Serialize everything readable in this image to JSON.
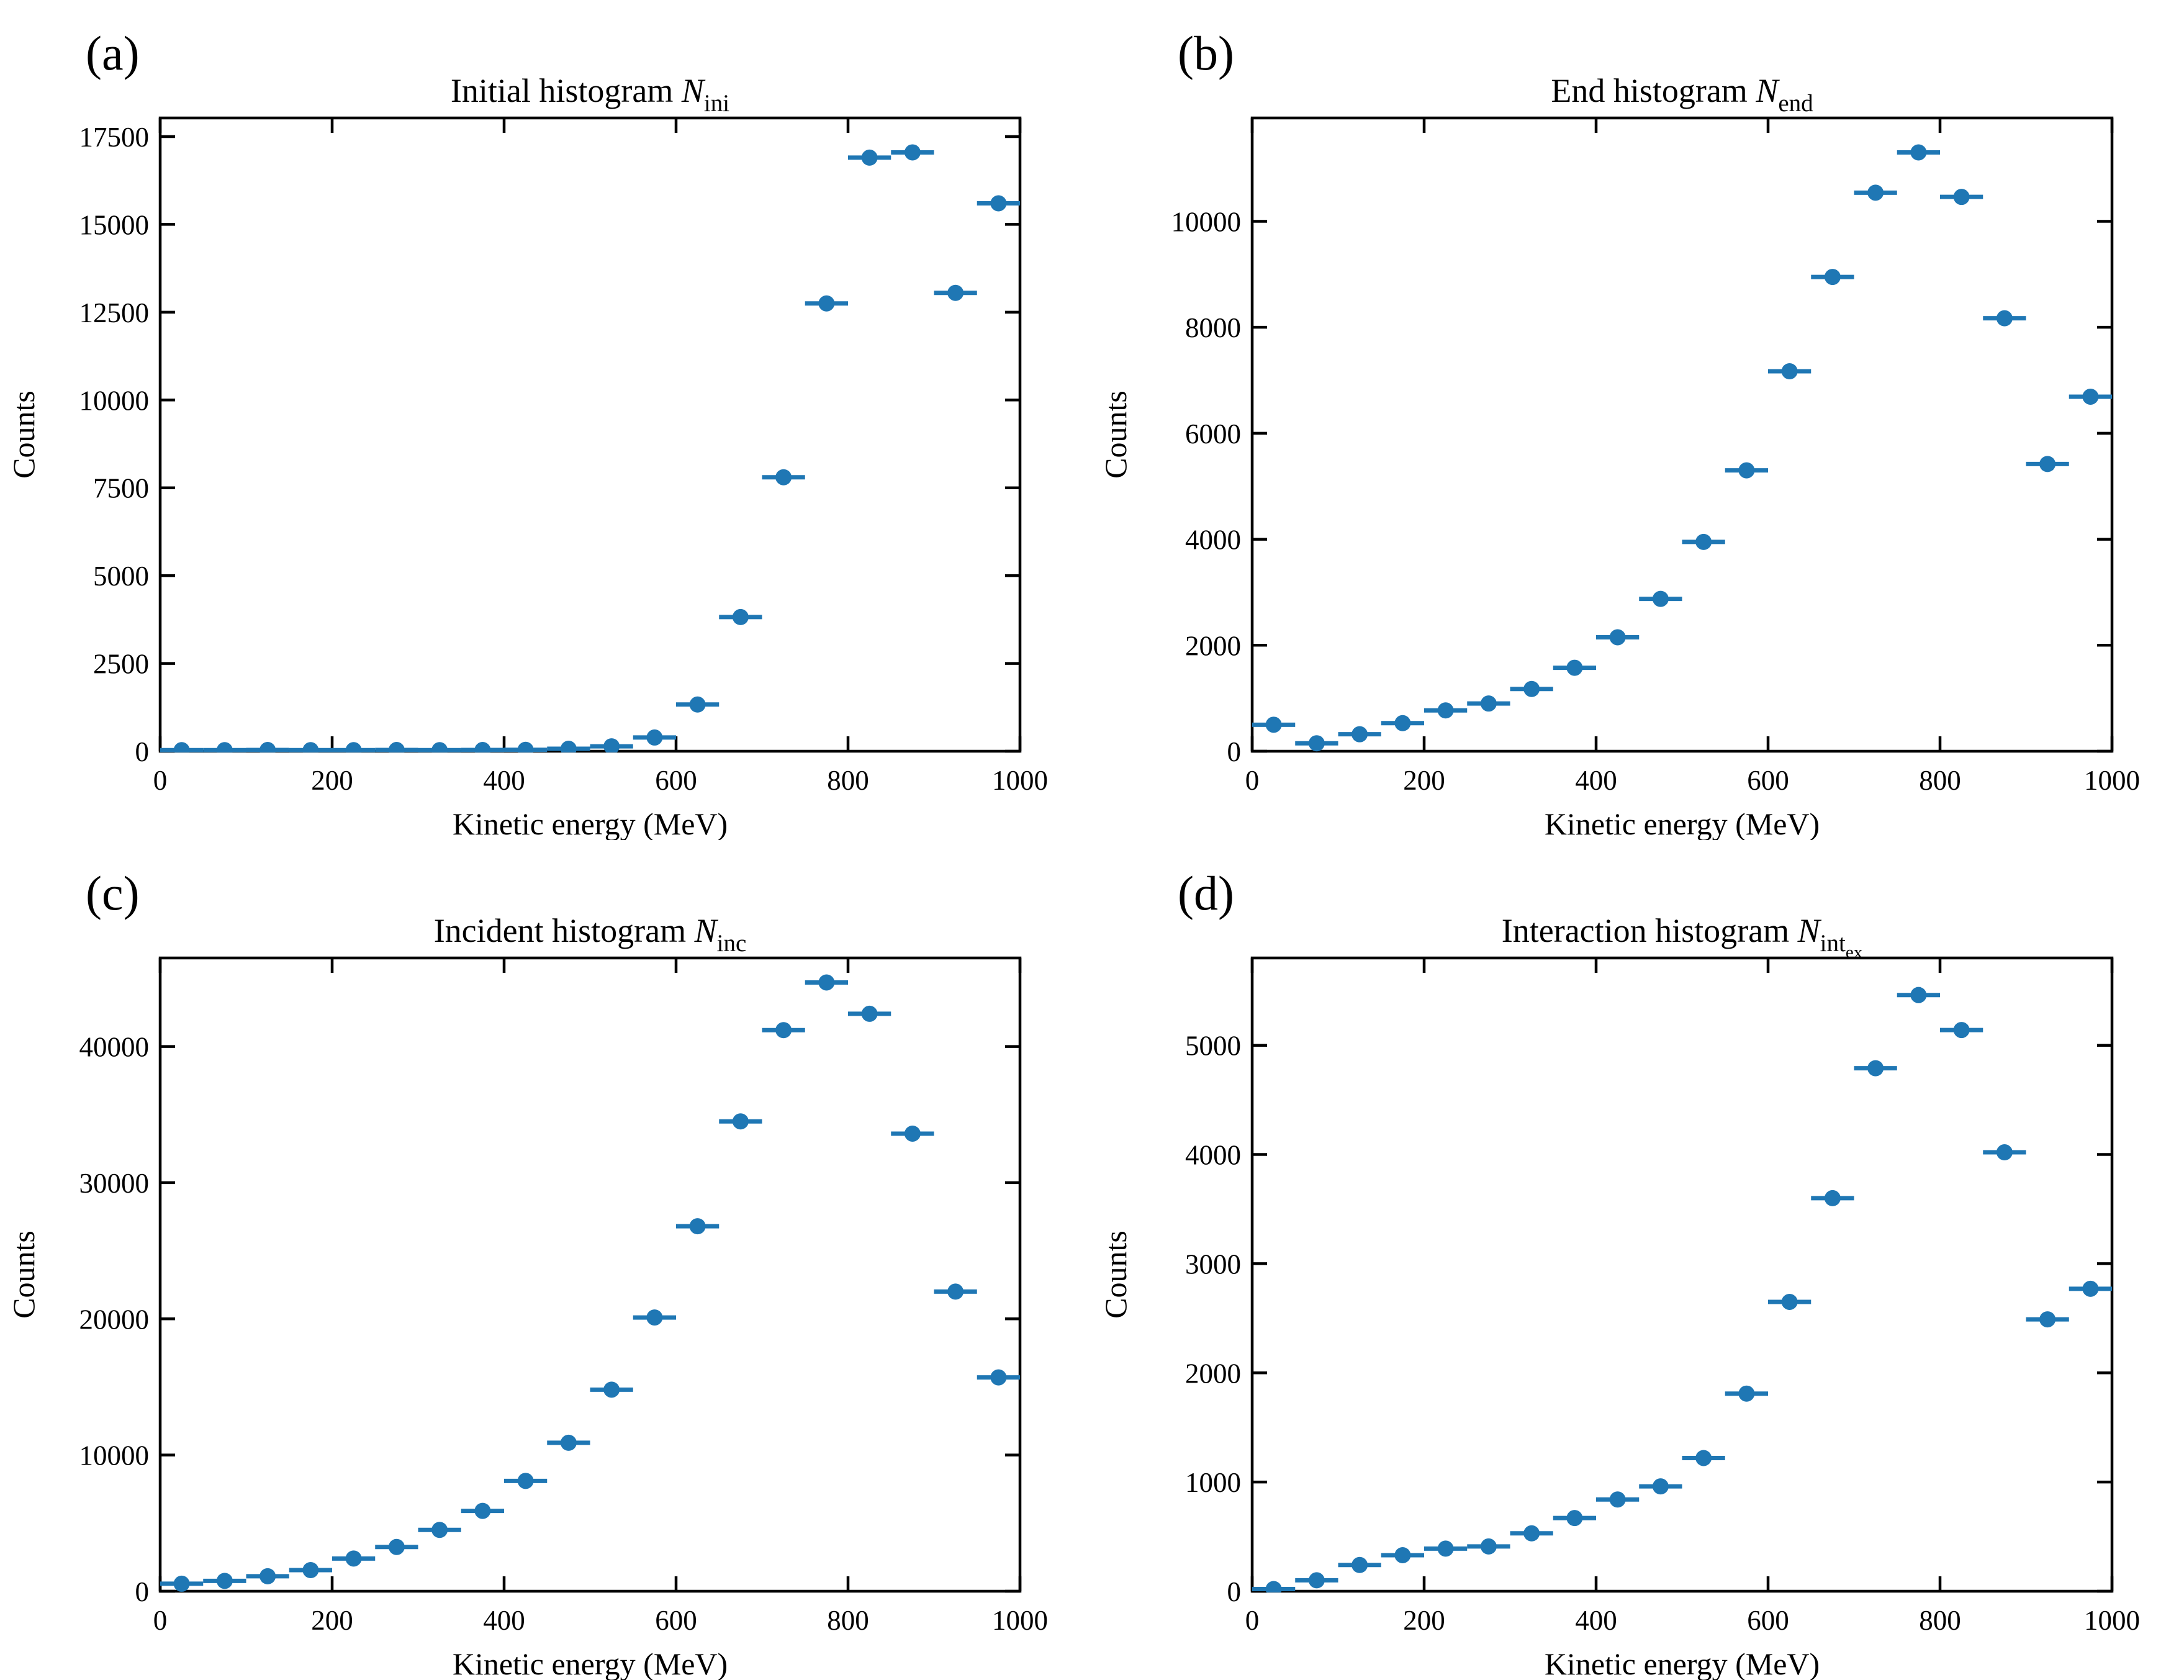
{
  "figure": {
    "background": "#ffffff",
    "accent_color": "#1f77b4",
    "spine_color": "#000000",
    "shared_xlabel": "Kinetic energy (MeV)",
    "shared_ylabel": "Counts",
    "bin_width_mev": 50
  },
  "chart_data": [
    {
      "id": "a",
      "type": "scatter",
      "panel_label": "(a)",
      "title": "Initial histogram",
      "symbol": "N",
      "symbol_subscripts": [
        "ini"
      ],
      "xlabel": "Kinetic energy (MeV)",
      "ylabel": "Counts",
      "x": [
        25,
        75,
        125,
        175,
        225,
        275,
        325,
        375,
        425,
        475,
        525,
        575,
        625,
        675,
        725,
        775,
        825,
        875,
        925,
        975
      ],
      "values": [
        30,
        30,
        35,
        30,
        30,
        35,
        30,
        35,
        40,
        70,
        140,
        390,
        1330,
        3820,
        7800,
        12750,
        16900,
        17050,
        13050,
        15600
      ],
      "xerr": 25,
      "yerr": "sqrt",
      "xlim": [
        0,
        1000
      ],
      "ylim": [
        0,
        18030
      ],
      "xticks": [
        0,
        200,
        400,
        600,
        800,
        1000
      ],
      "yticks": [
        0,
        2500,
        5000,
        7500,
        10000,
        12500,
        15000,
        17500
      ],
      "marker": "circle",
      "color": "#1f77b4",
      "grid": false,
      "legend": null
    },
    {
      "id": "b",
      "type": "scatter",
      "panel_label": "(b)",
      "title": "End histogram",
      "symbol": "N",
      "symbol_subscripts": [
        "end"
      ],
      "xlabel": "Kinetic energy (MeV)",
      "ylabel": "Counts",
      "x": [
        25,
        75,
        125,
        175,
        225,
        275,
        325,
        375,
        425,
        475,
        525,
        575,
        625,
        675,
        725,
        775,
        825,
        875,
        925,
        975
      ],
      "values": [
        500,
        150,
        320,
        530,
        770,
        900,
        1175,
        1575,
        2150,
        2875,
        3950,
        5300,
        7170,
        8950,
        10540,
        11300,
        10460,
        8170,
        5420,
        6690
      ],
      "xerr": 25,
      "yerr": "sqrt",
      "xlim": [
        0,
        1000
      ],
      "ylim": [
        0,
        11950
      ],
      "xticks": [
        0,
        200,
        400,
        600,
        800,
        1000
      ],
      "yticks": [
        0,
        2000,
        4000,
        6000,
        8000,
        10000
      ],
      "marker": "circle",
      "color": "#1f77b4",
      "grid": false,
      "legend": null
    },
    {
      "id": "c",
      "type": "scatter",
      "panel_label": "(c)",
      "title": "Incident histogram",
      "symbol": "N",
      "symbol_subscripts": [
        "inc"
      ],
      "xlabel": "Kinetic energy (MeV)",
      "ylabel": "Counts",
      "x": [
        25,
        75,
        125,
        175,
        225,
        275,
        325,
        375,
        425,
        475,
        525,
        575,
        625,
        675,
        725,
        775,
        825,
        875,
        925,
        975
      ],
      "values": [
        550,
        760,
        1100,
        1550,
        2400,
        3250,
        4500,
        5900,
        8100,
        10900,
        14800,
        20100,
        26800,
        34500,
        41200,
        44700,
        42400,
        33600,
        22000,
        15700
      ],
      "xerr": 25,
      "yerr": "sqrt",
      "xlim": [
        0,
        1000
      ],
      "ylim": [
        0,
        46500
      ],
      "xticks": [
        0,
        200,
        400,
        600,
        800,
        1000
      ],
      "yticks": [
        0,
        10000,
        20000,
        30000,
        40000
      ],
      "marker": "circle",
      "color": "#1f77b4",
      "grid": false,
      "legend": null
    },
    {
      "id": "d",
      "type": "scatter",
      "panel_label": "(d)",
      "title": "Interaction histogram",
      "symbol": "N",
      "symbol_subscripts": [
        "int",
        "ex"
      ],
      "xlabel": "Kinetic energy (MeV)",
      "ylabel": "Counts",
      "x": [
        25,
        75,
        125,
        175,
        225,
        275,
        325,
        375,
        425,
        475,
        525,
        575,
        625,
        675,
        725,
        775,
        825,
        875,
        925,
        975
      ],
      "values": [
        20,
        100,
        240,
        330,
        390,
        410,
        530,
        670,
        840,
        960,
        1220,
        1810,
        2650,
        3600,
        4790,
        5460,
        5140,
        4020,
        2490,
        2770
      ],
      "xerr": 25,
      "yerr": "sqrt",
      "xlim": [
        0,
        1000
      ],
      "ylim": [
        0,
        5800
      ],
      "xticks": [
        0,
        200,
        400,
        600,
        800,
        1000
      ],
      "yticks": [
        0,
        1000,
        2000,
        3000,
        4000,
        5000
      ],
      "marker": "circle",
      "color": "#1f77b4",
      "grid": false,
      "legend": null
    }
  ]
}
